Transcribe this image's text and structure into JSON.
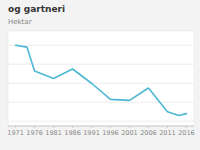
{
  "chart_data": {
    "type": "line",
    "title": "og gartneri",
    "y_label": "Hektar",
    "x": [
      1971,
      1974,
      1976,
      1981,
      1986,
      1991,
      1996,
      2001,
      2006,
      2011,
      2014,
      2016
    ],
    "values": [
      100,
      98,
      73,
      65,
      75,
      60,
      43,
      42,
      55,
      30,
      26,
      28
    ],
    "color": "#4db8d4",
    "xlim": [
      1969,
      2018
    ],
    "ylim": [
      15,
      115
    ],
    "xticks": [
      1971,
      1976,
      1981,
      1986,
      1991,
      1996,
      2001,
      2006,
      2011,
      2016
    ],
    "yticks": [
      20,
      40,
      60,
      80,
      100
    ],
    "grid": true,
    "tick_labels": "x"
  }
}
